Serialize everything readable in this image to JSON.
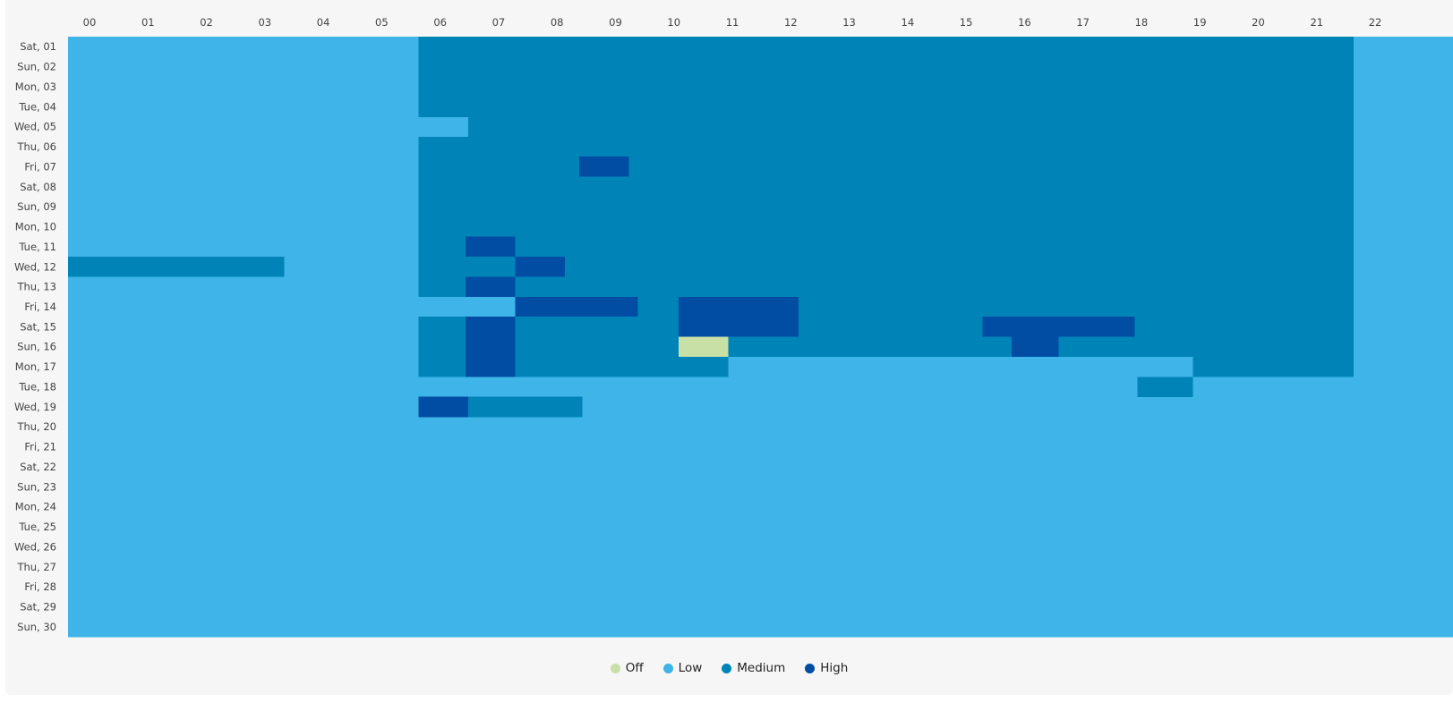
{
  "chart_data": {
    "type": "heatmap",
    "x_categories": [
      "00",
      "01",
      "02",
      "03",
      "04",
      "05",
      "06",
      "07",
      "08",
      "09",
      "10",
      "11",
      "12",
      "13",
      "14",
      "15",
      "16",
      "17",
      "18",
      "19",
      "20",
      "21",
      "22"
    ],
    "y_categories": [
      "Sat, 01",
      "Sun, 02",
      "Mon, 03",
      "Tue, 04",
      "Wed, 05",
      "Thu, 06",
      "Fri, 07",
      "Sat, 08",
      "Sun, 09",
      "Mon, 10",
      "Tue, 11",
      "Wed, 12",
      "Thu, 13",
      "Fri, 14",
      "Sat, 15",
      "Sun, 16",
      "Mon, 17",
      "Tue, 18",
      "Wed, 19",
      "Thu, 20",
      "Fri, 21",
      "Sat, 22",
      "Sun, 23",
      "Mon, 24",
      "Tue, 25",
      "Wed, 26",
      "Thu, 27",
      "Fri, 28",
      "Sat, 29",
      "Sun, 30"
    ],
    "x_range": [
      0,
      23.7
    ],
    "levels": [
      {
        "name": "Off",
        "color": "#c8dfa6"
      },
      {
        "name": "Low",
        "color": "#3eb4e9"
      },
      {
        "name": "Medium",
        "color": "#0084b8"
      },
      {
        "name": "High",
        "color": "#014da3"
      }
    ],
    "default_level": "Low",
    "segments": [
      {
        "row": 0,
        "start": 6.0,
        "end": 22.0,
        "level": "Medium"
      },
      {
        "row": 1,
        "start": 6.0,
        "end": 22.0,
        "level": "Medium"
      },
      {
        "row": 2,
        "start": 6.0,
        "end": 22.0,
        "level": "Medium"
      },
      {
        "row": 3,
        "start": 6.0,
        "end": 22.0,
        "level": "Medium"
      },
      {
        "row": 4,
        "start": 6.85,
        "end": 22.0,
        "level": "Medium"
      },
      {
        "row": 5,
        "start": 6.0,
        "end": 22.0,
        "level": "Medium"
      },
      {
        "row": 6,
        "start": 6.0,
        "end": 22.0,
        "level": "Medium"
      },
      {
        "row": 6,
        "start": 8.75,
        "end": 9.6,
        "level": "High"
      },
      {
        "row": 7,
        "start": 6.0,
        "end": 22.0,
        "level": "Medium"
      },
      {
        "row": 8,
        "start": 6.0,
        "end": 22.0,
        "level": "Medium"
      },
      {
        "row": 9,
        "start": 6.0,
        "end": 22.0,
        "level": "Medium"
      },
      {
        "row": 10,
        "start": 6.0,
        "end": 22.0,
        "level": "Medium"
      },
      {
        "row": 10,
        "start": 6.8,
        "end": 7.65,
        "level": "High"
      },
      {
        "row": 11,
        "start": 6.0,
        "end": 22.0,
        "level": "Medium"
      },
      {
        "row": 11,
        "start": 7.65,
        "end": 8.5,
        "level": "High"
      },
      {
        "row": 11,
        "start": 0.0,
        "end": 3.7,
        "level": "Medium"
      },
      {
        "row": 12,
        "start": 6.0,
        "end": 6.8,
        "level": "Medium"
      },
      {
        "row": 12,
        "start": 6.8,
        "end": 7.65,
        "level": "High"
      },
      {
        "row": 12,
        "start": 7.65,
        "end": 22.0,
        "level": "Medium"
      },
      {
        "row": 13,
        "start": 7.65,
        "end": 9.75,
        "level": "High"
      },
      {
        "row": 13,
        "start": 9.75,
        "end": 10.45,
        "level": "Medium"
      },
      {
        "row": 13,
        "start": 10.45,
        "end": 12.5,
        "level": "High"
      },
      {
        "row": 13,
        "start": 12.5,
        "end": 22.0,
        "level": "Medium"
      },
      {
        "row": 14,
        "start": 6.0,
        "end": 6.8,
        "level": "Medium"
      },
      {
        "row": 14,
        "start": 6.8,
        "end": 7.65,
        "level": "High"
      },
      {
        "row": 14,
        "start": 7.65,
        "end": 10.45,
        "level": "Medium"
      },
      {
        "row": 14,
        "start": 10.45,
        "end": 12.5,
        "level": "High"
      },
      {
        "row": 14,
        "start": 12.5,
        "end": 15.65,
        "level": "Medium"
      },
      {
        "row": 14,
        "start": 15.65,
        "end": 18.25,
        "level": "High"
      },
      {
        "row": 14,
        "start": 18.25,
        "end": 22.0,
        "level": "Medium"
      },
      {
        "row": 15,
        "start": 6.0,
        "end": 6.8,
        "level": "Medium"
      },
      {
        "row": 15,
        "start": 6.8,
        "end": 7.65,
        "level": "High"
      },
      {
        "row": 15,
        "start": 7.65,
        "end": 10.45,
        "level": "Medium"
      },
      {
        "row": 15,
        "start": 10.45,
        "end": 11.3,
        "level": "Off"
      },
      {
        "row": 15,
        "start": 11.3,
        "end": 16.15,
        "level": "Medium"
      },
      {
        "row": 15,
        "start": 16.15,
        "end": 16.95,
        "level": "High"
      },
      {
        "row": 15,
        "start": 16.95,
        "end": 22.0,
        "level": "Medium"
      },
      {
        "row": 16,
        "start": 6.0,
        "end": 6.8,
        "level": "Medium"
      },
      {
        "row": 16,
        "start": 6.8,
        "end": 7.65,
        "level": "High"
      },
      {
        "row": 16,
        "start": 7.65,
        "end": 11.3,
        "level": "Medium"
      },
      {
        "row": 16,
        "start": 19.25,
        "end": 22.0,
        "level": "Medium"
      },
      {
        "row": 17,
        "start": 18.3,
        "end": 19.25,
        "level": "Medium"
      },
      {
        "row": 18,
        "start": 6.0,
        "end": 6.85,
        "level": "High"
      },
      {
        "row": 18,
        "start": 6.85,
        "end": 8.8,
        "level": "Medium"
      }
    ],
    "legend_position": "bottom-center",
    "grid": false
  },
  "legend": {
    "items": [
      {
        "label": "Off",
        "color": "#c8dfa6"
      },
      {
        "label": "Low",
        "color": "#3eb4e9"
      },
      {
        "label": "Medium",
        "color": "#0084b8"
      },
      {
        "label": "High",
        "color": "#014da3"
      }
    ]
  }
}
